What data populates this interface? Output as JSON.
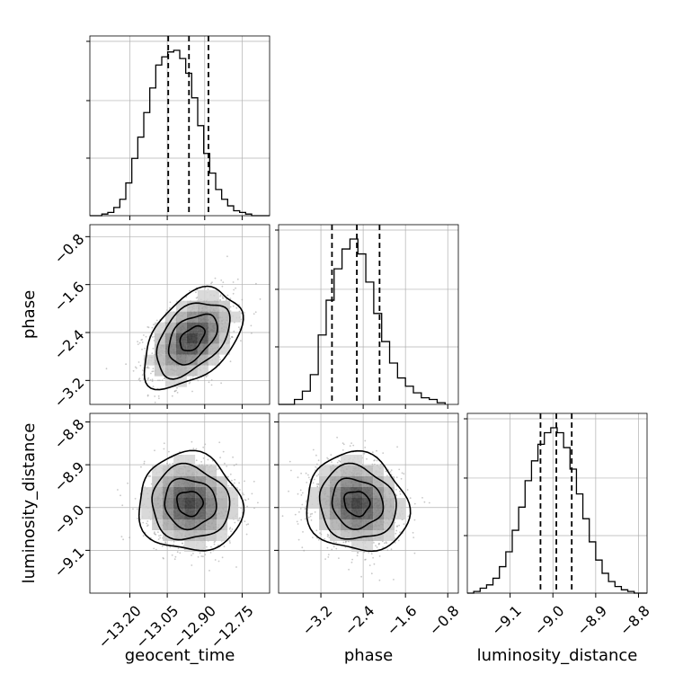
{
  "parameters": [
    "geocent_time",
    "phase",
    "luminosity_distance"
  ],
  "axis_labels": {
    "geocent_time": "geocent_time",
    "phase": "phase",
    "luminosity_distance": "luminosity_distance"
  },
  "colors": {
    "line": "#000000",
    "grid": "#b0b0b0",
    "scatter": "#9a9a9a"
  },
  "chart_data": [
    {
      "type": "histogram",
      "param": "geocent_time",
      "xlim": [
        -13.36,
        -12.64
      ],
      "ticks": [
        -13.2,
        -13.05,
        -12.9,
        -12.75
      ],
      "tick_labels": [
        "−13.20",
        "−13.05",
        "−12.90",
        "−12.75"
      ],
      "bin_edges": [
        -13.36,
        -13.336,
        -13.312,
        -13.288,
        -13.264,
        -13.24,
        -13.216,
        -13.192,
        -13.168,
        -13.144,
        -13.12,
        -13.096,
        -13.072,
        -13.048,
        -13.024,
        -13.0,
        -12.976,
        -12.952,
        -12.928,
        -12.904,
        -12.88,
        -12.856,
        -12.832,
        -12.808,
        -12.784,
        -12.76,
        -12.736,
        -12.712,
        -12.688,
        -12.664,
        -12.64
      ],
      "counts": [
        0,
        0,
        1,
        2,
        5,
        10,
        20,
        35,
        48,
        63,
        78,
        92,
        97,
        100,
        101,
        96,
        87,
        72,
        55,
        38,
        26,
        16,
        10,
        6,
        3,
        2,
        1,
        0,
        0,
        0
      ],
      "quantiles": [
        -13.046,
        -12.963,
        -12.885
      ]
    },
    {
      "type": "histogram",
      "param": "phase",
      "xlim": [
        -4.0,
        -0.6
      ],
      "ticks": [
        -3.2,
        -2.4,
        -1.6,
        -0.8
      ],
      "tick_labels": [
        "−3.2",
        "−2.4",
        "−1.6",
        "−0.8"
      ],
      "bin_edges": [
        -4.0,
        -3.85,
        -3.7,
        -3.55,
        -3.4,
        -3.25,
        -3.1,
        -2.95,
        -2.8,
        -2.65,
        -2.5,
        -2.35,
        -2.2,
        -2.05,
        -1.9,
        -1.75,
        -1.6,
        -1.45,
        -1.3,
        -1.15,
        -1.0,
        -0.85
      ],
      "counts": [
        0,
        0,
        3,
        8,
        18,
        42,
        63,
        82,
        94,
        100,
        91,
        74,
        55,
        38,
        25,
        16,
        11,
        7,
        4,
        3,
        1
      ],
      "quantiles": [
        -2.99,
        -2.52,
        -2.09
      ]
    },
    {
      "type": "histogram",
      "param": "luminosity_distance",
      "xlim": [
        -9.2,
        -8.78
      ],
      "ticks": [
        -9.1,
        -9.0,
        -8.9,
        -8.8
      ],
      "tick_labels": [
        "−9.1",
        "−9.0",
        "−8.9",
        "−8.8"
      ],
      "bin_edges": [
        -9.2,
        -9.185,
        -9.17,
        -9.155,
        -9.14,
        -9.125,
        -9.11,
        -9.095,
        -9.08,
        -9.065,
        -9.05,
        -9.035,
        -9.02,
        -9.005,
        -8.99,
        -8.975,
        -8.96,
        -8.945,
        -8.93,
        -8.915,
        -8.9,
        -8.885,
        -8.87,
        -8.855,
        -8.84,
        -8.825,
        -8.81,
        -8.795,
        -8.78
      ],
      "counts": [
        0,
        1,
        3,
        5,
        9,
        16,
        25,
        38,
        52,
        68,
        80,
        90,
        97,
        100,
        97,
        88,
        75,
        60,
        45,
        31,
        20,
        12,
        7,
        4,
        2,
        1,
        0,
        0
      ],
      "quantiles": [
        -9.029,
        -8.992,
        -8.956
      ]
    },
    {
      "type": "2d-density",
      "x_param": "geocent_time",
      "y_param": "phase",
      "xlim": [
        -13.36,
        -12.64
      ],
      "ylim": [
        -3.6,
        -0.6
      ],
      "x_ticks": [
        -13.2,
        -13.05,
        -12.9,
        -12.75
      ],
      "y_ticks": [
        -3.2,
        -2.4,
        -1.6,
        -0.8
      ],
      "y_tick_labels": [
        "−3.2",
        "−2.4",
        "−1.6",
        "−0.8"
      ],
      "mean": [
        -12.95,
        -2.5
      ],
      "std": [
        0.085,
        0.36
      ],
      "correlation": 0.45,
      "contour_levels_sigma": [
        0.5,
        1.0,
        1.5,
        2.0
      ]
    },
    {
      "type": "2d-density",
      "x_param": "geocent_time",
      "y_param": "luminosity_distance",
      "xlim": [
        -13.36,
        -12.64
      ],
      "ylim": [
        -9.2,
        -8.78
      ],
      "x_ticks": [
        -13.2,
        -13.05,
        -12.9,
        -12.75
      ],
      "x_tick_labels": [
        "−13.20",
        "−13.05",
        "−12.90",
        "−12.75"
      ],
      "y_ticks": [
        -9.1,
        -9.0,
        -8.9,
        -8.8
      ],
      "y_tick_labels": [
        "−9.1",
        "−9.0",
        "−8.9",
        "−8.8"
      ],
      "mean": [
        -12.96,
        -8.99
      ],
      "std": [
        0.09,
        0.05
      ],
      "correlation": -0.05,
      "contour_levels_sigma": [
        0.5,
        1.0,
        1.5,
        2.0
      ]
    },
    {
      "type": "2d-density",
      "x_param": "phase",
      "y_param": "luminosity_distance",
      "xlim": [
        -4.0,
        -0.6
      ],
      "ylim": [
        -9.2,
        -8.78
      ],
      "x_ticks": [
        -3.2,
        -2.4,
        -1.6,
        -0.8
      ],
      "x_tick_labels": [
        "−3.2",
        "−2.4",
        "−1.6",
        "−0.8"
      ],
      "y_ticks": [
        -9.1,
        -9.0,
        -8.9,
        -8.8
      ],
      "mean": [
        -2.52,
        -8.99
      ],
      "std": [
        0.42,
        0.05
      ],
      "correlation": -0.1,
      "contour_levels_sigma": [
        0.5,
        1.0,
        1.5,
        2.0
      ]
    }
  ]
}
